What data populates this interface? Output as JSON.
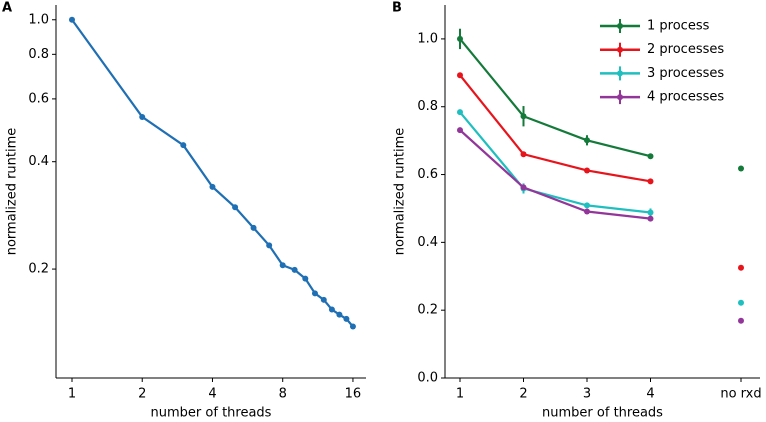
{
  "chart_data": [
    {
      "type": "line",
      "panel": "A",
      "xlabel": "number of threads",
      "ylabel": "normalized runtime",
      "xscale": "log",
      "yscale": "log",
      "x": [
        1,
        2,
        3,
        4,
        5,
        6,
        7,
        8,
        9,
        10,
        11,
        12,
        13,
        14,
        15,
        16
      ],
      "series": [
        {
          "color": "#1f6fb4",
          "values": [
            1.0,
            0.534,
            0.445,
            0.34,
            0.298,
            0.261,
            0.233,
            0.205,
            0.199,
            0.188,
            0.171,
            0.164,
            0.154,
            0.149,
            0.145,
            0.138
          ]
        }
      ],
      "xlim": [
        0.854,
        18.2
      ],
      "ylim": [
        0.099,
        1.1
      ],
      "xticks": [
        1,
        2,
        4,
        8,
        16
      ],
      "yticks": [
        0.2,
        0.4,
        0.6,
        0.8,
        {
          "value": 1,
          "label": "1.0"
        }
      ]
    },
    {
      "type": "errorline",
      "panel": "B",
      "xlabel": "number of threads",
      "ylabel": "normalized runtime",
      "categories": [
        "1",
        "2",
        "3",
        "4",
        "no rxd"
      ],
      "series": [
        {
          "name": "1 process",
          "color": "#137a3a",
          "values": [
            1.0,
            0.772,
            0.701,
            0.654,
            0.618
          ],
          "errors": [
            0.03,
            0.03,
            0.015,
            0.006,
            0.004
          ]
        },
        {
          "name": "2 processes",
          "color": "#e8141c",
          "values": [
            0.893,
            0.66,
            0.612,
            0.58,
            0.325
          ],
          "errors": [
            0.005,
            0.005,
            0.005,
            0.005,
            0.004
          ]
        },
        {
          "name": "3 processes",
          "color": "#1fbfbf",
          "values": [
            0.784,
            0.559,
            0.509,
            0.488,
            0.222
          ],
          "errors": [
            0.005,
            0.015,
            0.006,
            0.012,
            0.004
          ]
        },
        {
          "name": "4 processes",
          "color": "#93369a",
          "values": [
            0.731,
            0.562,
            0.491,
            0.47,
            0.169
          ],
          "errors": [
            0.005,
            0.008,
            0.005,
            0.006,
            0.004
          ]
        }
      ],
      "ylim": [
        0,
        1.1
      ],
      "yticks": [
        {
          "value": 0,
          "label": "0.0"
        },
        0.2,
        0.4,
        0.6,
        0.8,
        {
          "value": 1,
          "label": "1.0"
        }
      ],
      "legend": "upper right"
    }
  ]
}
